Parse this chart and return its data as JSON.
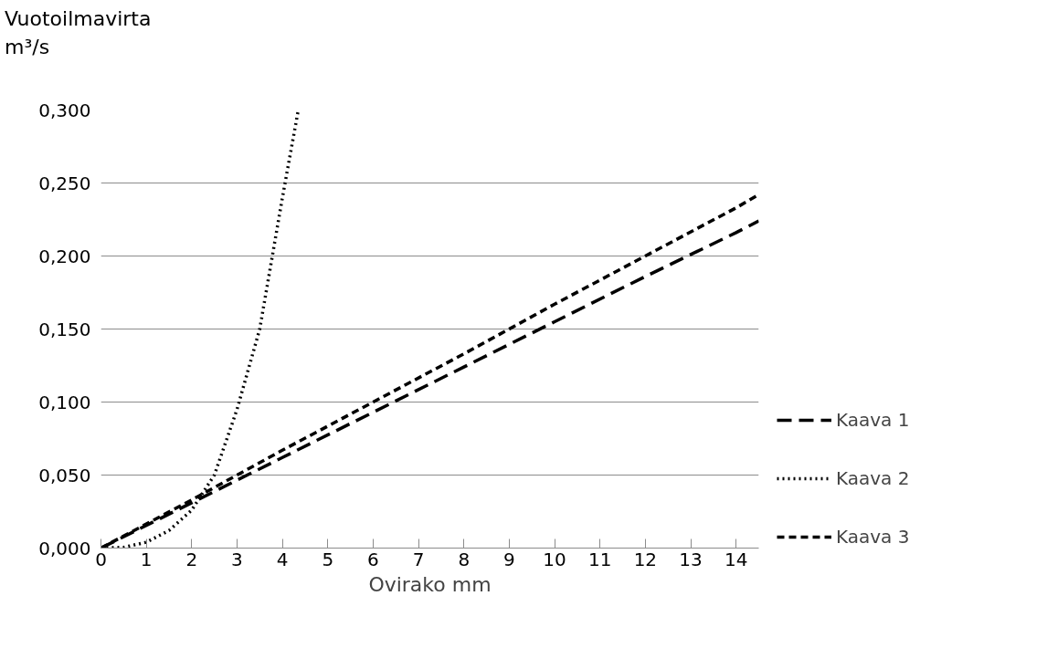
{
  "chart_data": {
    "type": "line",
    "xlabel": "Ovirako mm",
    "ylabel": "Vuotoilmavirta m³/s",
    "xlim": [
      0,
      14.5
    ],
    "xticks": [
      0,
      1,
      2,
      3,
      4,
      5,
      6,
      7,
      8,
      9,
      10,
      11,
      12,
      13,
      14
    ],
    "ylim": [
      0,
      0.3
    ],
    "yticks": [
      {
        "value": 0,
        "label": "0,000"
      },
      {
        "value": 0.05,
        "label": "0,050"
      },
      {
        "value": 0.1,
        "label": "0,100"
      },
      {
        "value": 0.15,
        "label": "0,150"
      },
      {
        "value": 0.2,
        "label": "0,200"
      },
      {
        "value": 0.25,
        "label": "0,250"
      },
      {
        "value": 0.3,
        "label": "0,300"
      }
    ],
    "grid": "y",
    "legend": "right",
    "marker": "none",
    "series": [
      {
        "name": "Kaava 1",
        "color": "#000000",
        "line_style": "dashed",
        "x": [
          0,
          2,
          4,
          6,
          8,
          10,
          12,
          14,
          14.5
        ],
        "values": [
          0,
          0.031,
          0.062,
          0.093,
          0.124,
          0.155,
          0.186,
          0.216,
          0.224
        ]
      },
      {
        "name": "Kaava 2",
        "color": "#000000",
        "line_style": "dotted",
        "x": [
          0,
          0.5,
          1,
          1.5,
          2,
          2.5,
          3,
          3.5,
          4,
          4.35
        ],
        "values": [
          0,
          0.0005,
          0.004,
          0.012,
          0.026,
          0.05,
          0.095,
          0.15,
          0.24,
          0.3
        ]
      },
      {
        "name": "Kaava 3",
        "color": "#000000",
        "line_style": "short_dashed",
        "x": [
          0,
          2,
          4,
          6,
          8,
          10,
          12,
          14,
          14.5
        ],
        "values": [
          0,
          0.033,
          0.067,
          0.1,
          0.133,
          0.167,
          0.2,
          0.233,
          0.242
        ]
      }
    ]
  }
}
